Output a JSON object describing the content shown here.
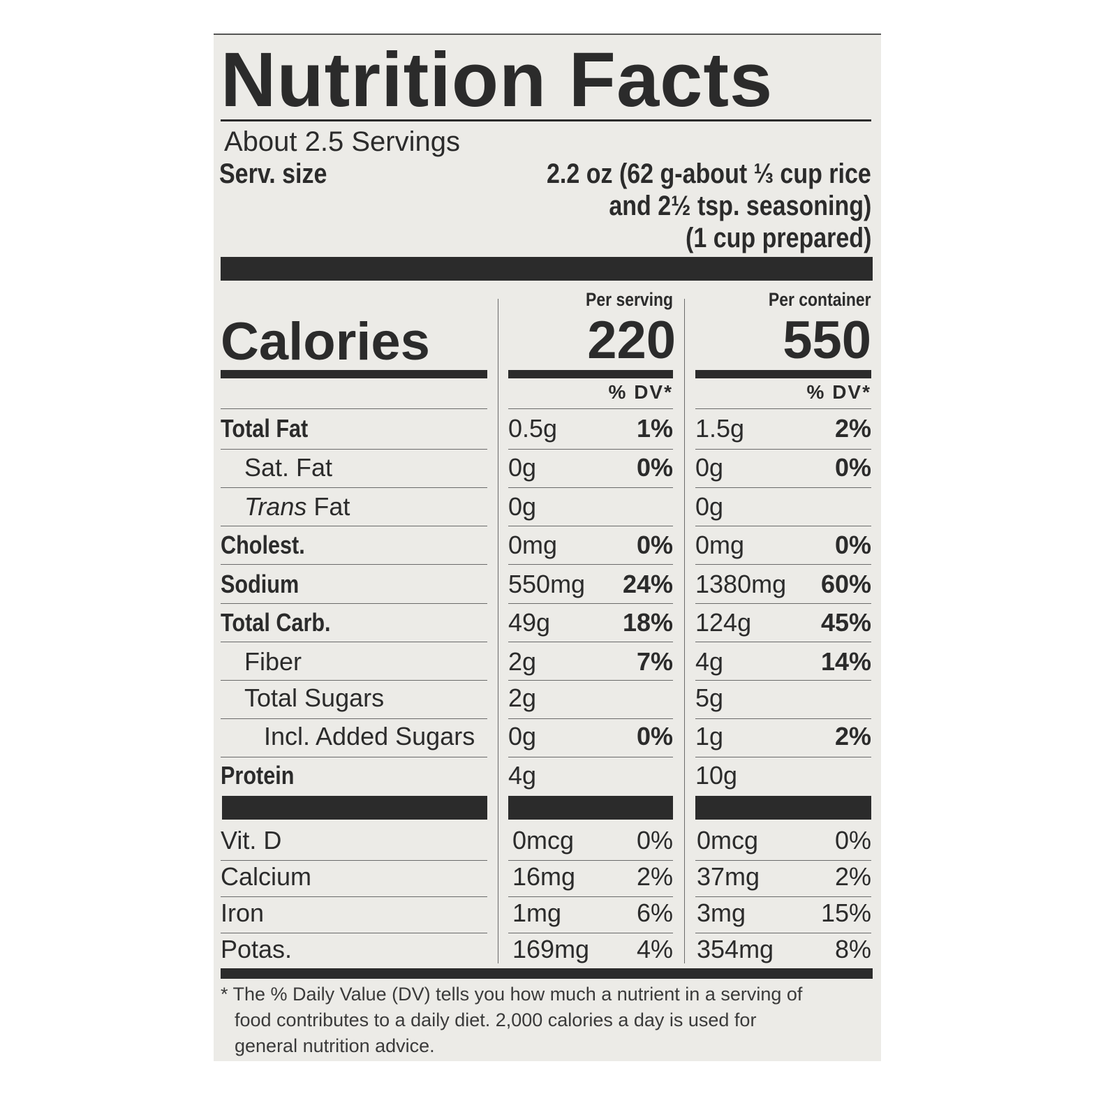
{
  "label": {
    "title": "Nutrition Facts",
    "servings": "About 2.5 Servings",
    "serving_size_label": "Serv. size",
    "serving_size_lines": [
      "2.2 oz (62 g-about ⅓ cup rice",
      "and 2½ tsp. seasoning)",
      "(1 cup prepared)"
    ],
    "calories_label": "Calories",
    "per_serving_header": "Per serving",
    "per_container_header": "Per container",
    "calories_per_serving": "220",
    "calories_per_container": "550",
    "dv_header": "% DV*",
    "nutrients": [
      {
        "label": "Total Fat",
        "bold": true,
        "indent": 0,
        "serving": "0.5g",
        "serving_dv": "1%",
        "container": "1.5g",
        "container_dv": "2%"
      },
      {
        "label": "Sat. Fat",
        "bold": false,
        "indent": 1,
        "serving": "0g",
        "serving_dv": "0%",
        "container": "0g",
        "container_dv": "0%"
      },
      {
        "label_italic": "Trans",
        "label": " Fat",
        "bold": false,
        "indent": 1,
        "serving": "0g",
        "serving_dv": "",
        "container": "0g",
        "container_dv": ""
      },
      {
        "label": "Cholest.",
        "bold": true,
        "indent": 0,
        "serving": "0mg",
        "serving_dv": "0%",
        "container": "0mg",
        "container_dv": "0%"
      },
      {
        "label": "Sodium",
        "bold": true,
        "indent": 0,
        "serving": "550mg",
        "serving_dv": "24%",
        "container": "1380mg",
        "container_dv": "60%"
      },
      {
        "label": "Total Carb.",
        "bold": true,
        "indent": 0,
        "serving": "49g",
        "serving_dv": "18%",
        "container": "124g",
        "container_dv": "45%"
      },
      {
        "label": "Fiber",
        "bold": false,
        "indent": 1,
        "serving": "2g",
        "serving_dv": "7%",
        "container": "4g",
        "container_dv": "14%"
      },
      {
        "label": "Total Sugars",
        "bold": false,
        "indent": 1,
        "serving": "2g",
        "serving_dv": "",
        "container": "5g",
        "container_dv": ""
      },
      {
        "label": "Incl. Added Sugars",
        "bold": false,
        "indent": 2,
        "serving": "0g",
        "serving_dv": "0%",
        "container": "1g",
        "container_dv": "2%"
      },
      {
        "label": "Protein",
        "bold": true,
        "indent": 0,
        "serving": "4g",
        "serving_dv": "",
        "container": "10g",
        "container_dv": ""
      }
    ],
    "vitamins": [
      {
        "label": "Vit. D",
        "serving": "0mcg",
        "serving_dv": "0%",
        "container": "0mcg",
        "container_dv": "0%"
      },
      {
        "label": "Calcium",
        "serving": "16mg",
        "serving_dv": "2%",
        "container": "37mg",
        "container_dv": "2%"
      },
      {
        "label": "Iron",
        "serving": "1mg",
        "serving_dv": "6%",
        "container": "3mg",
        "container_dv": "15%"
      },
      {
        "label": "Potas.",
        "serving": "169mg",
        "serving_dv": "4%",
        "container": "354mg",
        "container_dv": "8%"
      }
    ],
    "footnote_lines": [
      "* The % Daily Value (DV) tells you how much a nutrient in a serving of",
      "food contributes to a daily diet. 2,000 calories a day is used for",
      "general nutrition advice."
    ],
    "colors": {
      "background": "#ecebe7",
      "ink": "#2b2b2b"
    }
  }
}
